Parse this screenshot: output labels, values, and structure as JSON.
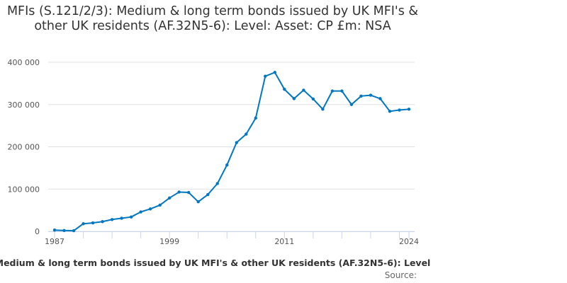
{
  "chart_data": {
    "type": "line",
    "title": "MFIs (S.121/2/3): Medium & long term bonds issued by UK MFI's & other UK residents (AF.32N5-6): Level: Asset: CP £m: NSA",
    "xlabel": "Medium & long term bonds issued by UK MFI's & other UK residents (AF.32N5-6): Level",
    "ylabel": "",
    "source_label": "Source:",
    "ylim": [
      0,
      400000
    ],
    "yticks": [
      0,
      100000,
      200000,
      300000,
      400000
    ],
    "ytick_labels": [
      "0",
      "100 000",
      "200 000",
      "300 000",
      "400 000"
    ],
    "xticks_labeled": [
      1987,
      1999,
      2011,
      2024
    ],
    "xlim": [
      1987,
      2024
    ],
    "color": "#0077c0",
    "series": [
      {
        "name": "Level",
        "x": [
          1987,
          1988,
          1989,
          1990,
          1991,
          1992,
          1993,
          1994,
          1995,
          1996,
          1997,
          1998,
          1999,
          2000,
          2001,
          2002,
          2003,
          2004,
          2005,
          2006,
          2007,
          2008,
          2009,
          2010,
          2011,
          2012,
          2013,
          2014,
          2015,
          2016,
          2017,
          2018,
          2019,
          2020,
          2021,
          2022,
          2023,
          2024
        ],
        "values": [
          3000,
          2000,
          1500,
          18000,
          20000,
          23000,
          28000,
          31000,
          34000,
          46000,
          53000,
          62000,
          79000,
          93000,
          92000,
          70000,
          87000,
          113000,
          157000,
          210000,
          230000,
          268000,
          367000,
          376000,
          336000,
          314000,
          334000,
          313000,
          289000,
          332000,
          332000,
          300000,
          320000,
          322000,
          314000,
          284000,
          287000,
          289000
        ]
      }
    ]
  }
}
